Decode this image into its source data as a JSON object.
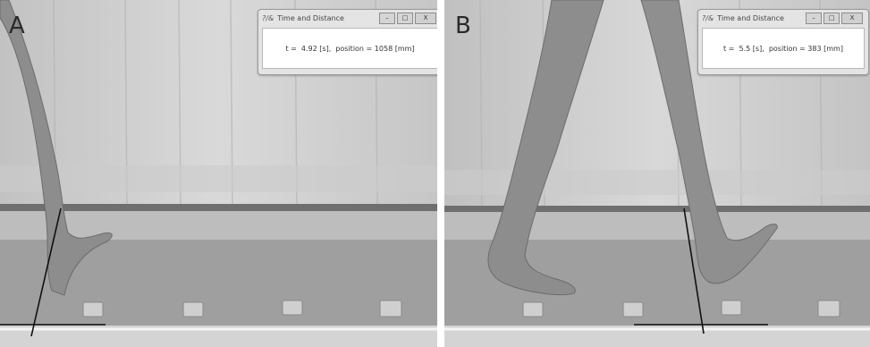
{
  "panels": [
    {
      "label": "A",
      "window": {
        "icon": "?/&",
        "title": "Time and Distance",
        "readout": "t =  4.92 [s],  position = 1058 [mm]"
      }
    },
    {
      "label": "B",
      "window": {
        "icon": "?/&",
        "title": "Time and Distance",
        "readout": "t =  5.5 [s],  position = 383 [mm]"
      }
    }
  ],
  "controls": {
    "minimize": "–",
    "maximize": "□",
    "close": "X"
  }
}
